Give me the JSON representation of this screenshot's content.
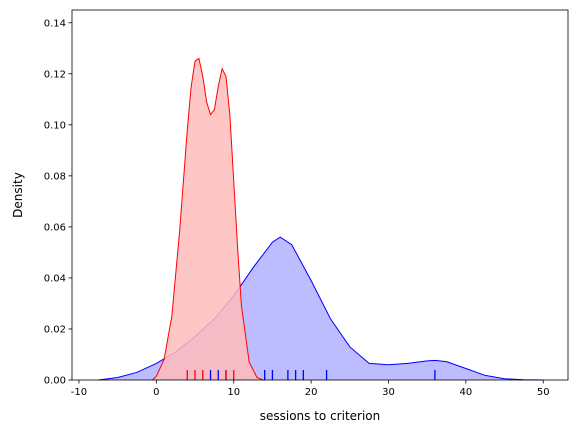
{
  "chart_data": {
    "type": "area",
    "title": "",
    "xlabel": "sessions to criterion",
    "ylabel": "Density",
    "xlim": [
      -10.9,
      53.2
    ],
    "ylim": [
      0,
      0.145
    ],
    "xticks": [
      -10,
      0,
      10,
      20,
      30,
      40,
      50
    ],
    "yticks": [
      0.0,
      0.02,
      0.04,
      0.06,
      0.08,
      0.1,
      0.12,
      0.14
    ],
    "grid": false,
    "legend": "none",
    "series": [
      {
        "color": "#0000ff",
        "fill": "#bcbcff",
        "kde": {
          "x": [
            -7.5,
            -5,
            -2.5,
            0,
            2.5,
            5,
            7.5,
            10,
            12.5,
            15,
            16,
            17.5,
            20,
            22.5,
            25,
            27.5,
            30,
            32.5,
            35,
            36,
            37.5,
            40,
            42.5,
            45,
            47.5,
            50
          ],
          "y": [
            0.0,
            0.001,
            0.003,
            0.0065,
            0.011,
            0.017,
            0.024,
            0.033,
            0.044,
            0.054,
            0.056,
            0.053,
            0.039,
            0.024,
            0.013,
            0.0065,
            0.006,
            0.0065,
            0.0075,
            0.0077,
            0.0072,
            0.0045,
            0.0018,
            0.0005,
            0.0001,
            0.0
          ]
        },
        "rug": [
          7,
          8,
          9,
          14,
          15,
          17,
          18,
          19,
          22,
          36
        ]
      },
      {
        "color": "#ff0000",
        "fill": "#ffbcbc",
        "kde": {
          "x": [
            -0.5,
            0,
            1,
            2,
            3,
            4,
            4.5,
            5,
            5.5,
            6,
            6.5,
            7,
            7.5,
            8,
            8.5,
            9,
            9.5,
            10,
            10.5,
            11,
            12,
            13,
            13.8
          ],
          "y": [
            0.0,
            0.0015,
            0.008,
            0.025,
            0.058,
            0.098,
            0.115,
            0.125,
            0.126,
            0.119,
            0.109,
            0.104,
            0.106,
            0.115,
            0.122,
            0.119,
            0.104,
            0.078,
            0.052,
            0.029,
            0.007,
            0.001,
            0.0
          ]
        },
        "rug": [
          4,
          5,
          6,
          9,
          10
        ]
      }
    ]
  }
}
